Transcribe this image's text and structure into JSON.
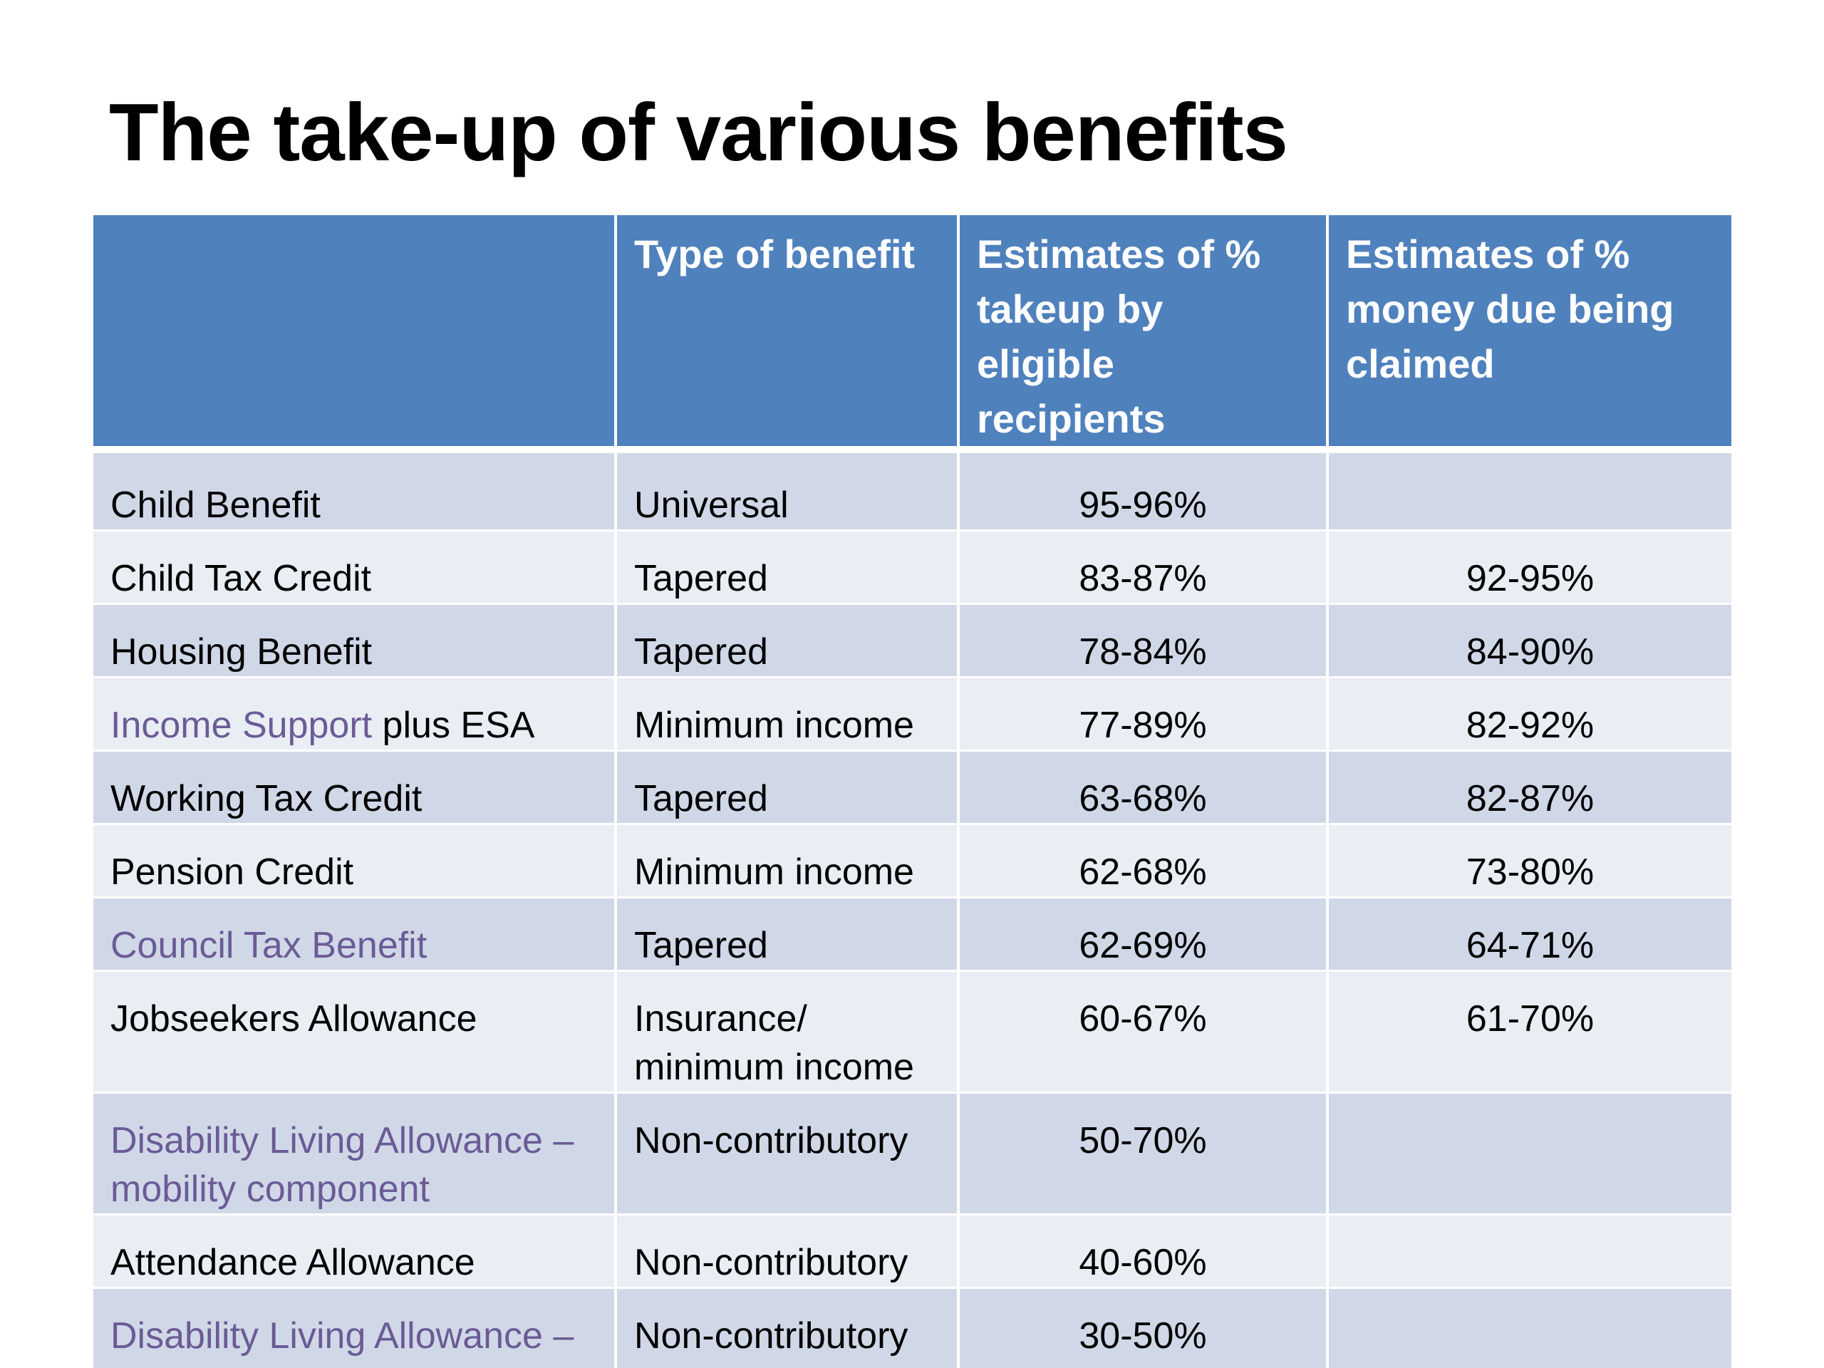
{
  "title": "The take-up of various benefits",
  "table": {
    "headers": [
      "",
      "Type of benefit",
      "Estimates of  % takeup by eligible recipients",
      "Estimates of % money due being claimed"
    ],
    "rows": [
      {
        "benefit": "Child Benefit",
        "type": "Universal",
        "takeup": "95-96%",
        "money": ""
      },
      {
        "benefit": "Child Tax Credit",
        "type": "Tapered",
        "takeup": "83-87%",
        "money": "92-95%"
      },
      {
        "benefit": "Housing Benefit",
        "type": "Tapered",
        "takeup": "78-84%",
        "money": "84-90%"
      },
      {
        "benefit_link": "Income Support",
        "benefit_suffix": " plus ESA",
        "type": "Minimum income",
        "takeup": "77-89%",
        "money": "82-92%"
      },
      {
        "benefit": "Working Tax Credit",
        "type": "Tapered",
        "takeup": "63-68%",
        "money": "82-87%"
      },
      {
        "benefit": "Pension Credit",
        "type": "Minimum income",
        "takeup": "62-68%",
        "money": "73-80%"
      },
      {
        "benefit_link": "Council Tax Benefit",
        "type": "Tapered",
        "takeup": "62-69%",
        "money": "64-71%"
      },
      {
        "benefit": "Jobseekers Allowance",
        "type": "Insurance/ minimum income",
        "takeup": "60-67%",
        "money": "61-70%"
      },
      {
        "benefit_link": "Disability Living Allowance – mobility component",
        "type": "Non-contributory",
        "takeup": "50-70%",
        "money": ""
      },
      {
        "benefit": "Attendance Allowance",
        "type": "Non-contributory",
        "takeup": "40-60%",
        "money": ""
      },
      {
        "benefit_link": "Disability Living Allowance – care component",
        "type": "Non-contributory",
        "takeup": "30-50%",
        "money": ""
      }
    ]
  },
  "colors": {
    "header_bg": "#4f81bd",
    "row_dark": "#d0d8e8",
    "row_light": "#e9edf4",
    "link_text": "#6b5b95"
  }
}
